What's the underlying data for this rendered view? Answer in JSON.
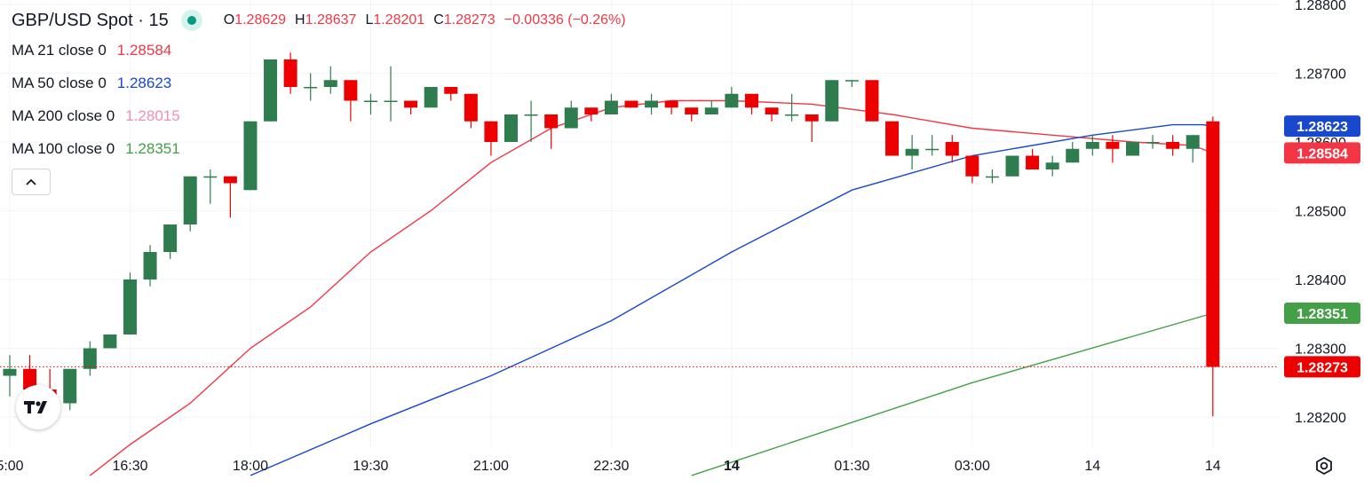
{
  "header": {
    "symbol": "GBP/USD Spot · 15",
    "ohlc": [
      {
        "k": "O",
        "v": "1.28629"
      },
      {
        "k": "H",
        "v": "1.28637"
      },
      {
        "k": "L",
        "v": "1.28201"
      },
      {
        "k": "C",
        "v": "1.28273"
      }
    ],
    "change": "−0.00336 (−0.26%)"
  },
  "ma_legend": [
    {
      "label": "MA 21 close 0",
      "value": "1.28584",
      "color": "#f23645"
    },
    {
      "label": "MA 50 close 0",
      "value": "1.28623",
      "color": "#1848cc"
    },
    {
      "label": "MA 200 close 0",
      "value": "1.28015",
      "color": "#f48fb1"
    },
    {
      "label": "MA 100 close 0",
      "value": "1.28351",
      "color": "#43a047"
    }
  ],
  "collapse_glyph": "^",
  "chart_data": {
    "type": "candlestick",
    "y_ticks": [
      "1.28800",
      "1.28700",
      "1.28600",
      "1.28500",
      "1.28400",
      "1.28300",
      "1.28200"
    ],
    "y_tick_values": [
      1.288,
      1.287,
      1.286,
      1.285,
      1.284,
      1.283,
      1.282
    ],
    "x_labels": [
      "5:00",
      "16:30",
      "18:00",
      "19:30",
      "21:00",
      "22:30",
      "14",
      "01:30",
      "03:00",
      "14",
      "14"
    ],
    "x_label_bold": [
      false,
      false,
      false,
      false,
      false,
      false,
      true,
      false,
      false,
      false,
      false
    ],
    "x_label_bar_index": [
      0,
      6,
      12,
      18,
      24,
      30,
      36,
      42,
      48,
      54,
      60
    ],
    "ylim": [
      1.28115,
      1.28815
    ],
    "up_color": "#2f7d4f",
    "down_color": "#ed0000",
    "candles": [
      [
        1.2826,
        1.2829,
        1.2823,
        1.2827
      ],
      [
        1.2827,
        1.2829,
        1.2823,
        1.2824
      ],
      [
        1.2824,
        1.2827,
        1.2821,
        1.2822
      ],
      [
        1.2822,
        1.2827,
        1.2821,
        1.2827
      ],
      [
        1.2827,
        1.2831,
        1.2826,
        1.283
      ],
      [
        1.283,
        1.2832,
        1.283,
        1.2832
      ],
      [
        1.2832,
        1.2841,
        1.2832,
        1.284
      ],
      [
        1.284,
        1.2845,
        1.2839,
        1.2844
      ],
      [
        1.2844,
        1.2848,
        1.2843,
        1.2848
      ],
      [
        1.2848,
        1.2855,
        1.2847,
        1.2855
      ],
      [
        1.2855,
        1.2856,
        1.2851,
        1.2855
      ],
      [
        1.2855,
        1.2855,
        1.2849,
        1.2854
      ],
      [
        1.2853,
        1.2863,
        1.2853,
        1.2863
      ],
      [
        1.2863,
        1.2872,
        1.2863,
        1.2872
      ],
      [
        1.2872,
        1.2873,
        1.2867,
        1.2868
      ],
      [
        1.2868,
        1.287,
        1.2866,
        1.2868
      ],
      [
        1.2868,
        1.2871,
        1.2867,
        1.2869
      ],
      [
        1.2869,
        1.2869,
        1.2863,
        1.2866
      ],
      [
        1.2866,
        1.2867,
        1.2864,
        1.2866
      ],
      [
        1.2866,
        1.2871,
        1.2863,
        1.2866
      ],
      [
        1.2866,
        1.2866,
        1.2864,
        1.2865
      ],
      [
        1.2865,
        1.2868,
        1.2865,
        1.2868
      ],
      [
        1.2868,
        1.2868,
        1.2866,
        1.2867
      ],
      [
        1.2867,
        1.2867,
        1.2862,
        1.2863
      ],
      [
        1.2863,
        1.2863,
        1.2858,
        1.286
      ],
      [
        1.286,
        1.2864,
        1.286,
        1.2864
      ],
      [
        1.2864,
        1.2866,
        1.286,
        1.2864
      ],
      [
        1.2864,
        1.2864,
        1.2859,
        1.2862
      ],
      [
        1.2862,
        1.2866,
        1.2862,
        1.2865
      ],
      [
        1.2865,
        1.2865,
        1.2863,
        1.2864
      ],
      [
        1.2864,
        1.2867,
        1.2864,
        1.2866
      ],
      [
        1.2866,
        1.2866,
        1.2865,
        1.2865
      ],
      [
        1.2865,
        1.2867,
        1.2864,
        1.2866
      ],
      [
        1.2866,
        1.2866,
        1.2864,
        1.2865
      ],
      [
        1.2865,
        1.2865,
        1.2863,
        1.2864
      ],
      [
        1.2864,
        1.2866,
        1.2864,
        1.2865
      ],
      [
        1.2865,
        1.2868,
        1.2865,
        1.2867
      ],
      [
        1.2867,
        1.2867,
        1.2864,
        1.2865
      ],
      [
        1.2865,
        1.2865,
        1.2863,
        1.2864
      ],
      [
        1.2864,
        1.2867,
        1.2863,
        1.2864
      ],
      [
        1.2864,
        1.2864,
        1.286,
        1.2863
      ],
      [
        1.2863,
        1.2869,
        1.2863,
        1.2869
      ],
      [
        1.2869,
        1.2869,
        1.2868,
        1.2869
      ],
      [
        1.2869,
        1.2869,
        1.2863,
        1.2863
      ],
      [
        1.2863,
        1.2863,
        1.2858,
        1.2858
      ],
      [
        1.2858,
        1.2861,
        1.2856,
        1.2859
      ],
      [
        1.2859,
        1.2861,
        1.2858,
        1.2859
      ],
      [
        1.286,
        1.2861,
        1.2857,
        1.2858
      ],
      [
        1.2858,
        1.2858,
        1.2854,
        1.2855
      ],
      [
        1.2855,
        1.2856,
        1.2854,
        1.2855
      ],
      [
        1.2855,
        1.2858,
        1.2855,
        1.2858
      ],
      [
        1.2858,
        1.2859,
        1.2856,
        1.2856
      ],
      [
        1.2856,
        1.2858,
        1.2855,
        1.2857
      ],
      [
        1.2857,
        1.286,
        1.2857,
        1.2859
      ],
      [
        1.2859,
        1.2861,
        1.2858,
        1.286
      ],
      [
        1.286,
        1.2861,
        1.2857,
        1.2859
      ],
      [
        1.2858,
        1.286,
        1.2858,
        1.286
      ],
      [
        1.286,
        1.2861,
        1.2859,
        1.286
      ],
      [
        1.286,
        1.2861,
        1.2858,
        1.2859
      ],
      [
        1.2859,
        1.2861,
        1.2857,
        1.2861
      ],
      [
        1.2863,
        1.28637,
        1.28201,
        1.28273
      ]
    ],
    "ma_series": [
      {
        "key": "ma21",
        "color": "#f23645",
        "points": [
          [
            4,
            1.28115
          ],
          [
            6,
            1.2816
          ],
          [
            9,
            1.2822
          ],
          [
            12,
            1.283
          ],
          [
            15,
            1.2836
          ],
          [
            18,
            1.2844
          ],
          [
            21,
            1.285
          ],
          [
            24,
            1.2857
          ],
          [
            27,
            1.2862
          ],
          [
            30,
            1.2865
          ],
          [
            33,
            1.2866
          ],
          [
            36,
            1.2866
          ],
          [
            40,
            1.28655
          ],
          [
            44,
            1.2864
          ],
          [
            48,
            1.2862
          ],
          [
            52,
            1.2861
          ],
          [
            56,
            1.286
          ],
          [
            59,
            1.28595
          ],
          [
            60,
            1.28584
          ]
        ]
      },
      {
        "key": "ma50",
        "color": "#1848cc",
        "points": [
          [
            12,
            1.28115
          ],
          [
            18,
            1.2819
          ],
          [
            24,
            1.2826
          ],
          [
            30,
            1.2834
          ],
          [
            36,
            1.2844
          ],
          [
            42,
            1.2853
          ],
          [
            48,
            1.2858
          ],
          [
            54,
            1.2861
          ],
          [
            58,
            1.28625
          ],
          [
            59.5,
            1.28625
          ],
          [
            60,
            1.28623
          ]
        ]
      },
      {
        "key": "ma100",
        "color": "#43a047",
        "points": [
          [
            34,
            1.28115
          ],
          [
            48,
            1.2825
          ],
          [
            60,
            1.28351
          ]
        ]
      }
    ],
    "last_price": 1.28273,
    "price_labels": [
      {
        "text": "1.28623",
        "value": 1.28623,
        "color": "#1848cc"
      },
      {
        "text": "1.28584",
        "value": 1.28584,
        "color": "#f23645"
      },
      {
        "text": "1.28351",
        "value": 1.28351,
        "color": "#43a047"
      },
      {
        "text": "1.28273",
        "value": 1.28273,
        "color": "#ed0000"
      }
    ]
  }
}
